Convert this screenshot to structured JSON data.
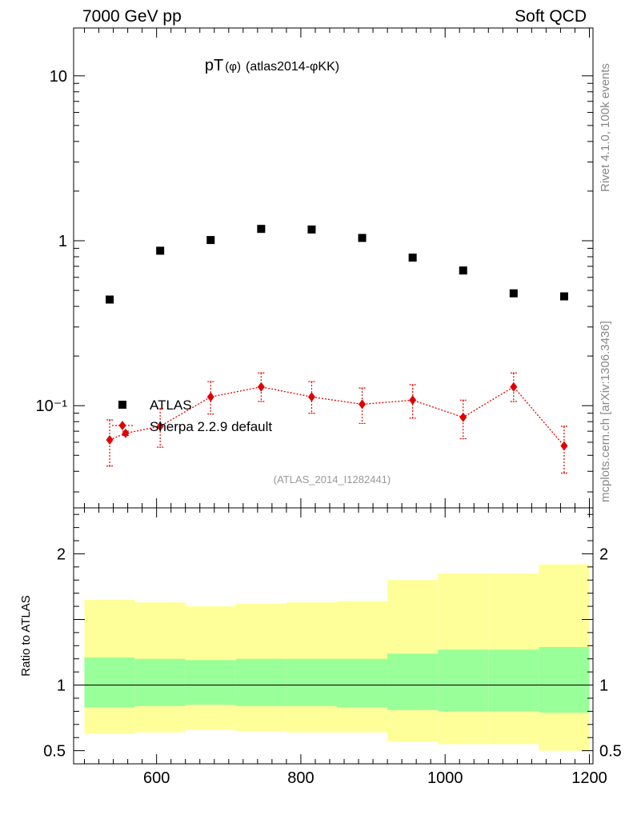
{
  "header": {
    "energy_label": "7000 GeV pp",
    "process_label": "Soft QCD",
    "title_main": "pT",
    "title_sub": "(φ)",
    "title_tail": "(atlas2014-φKK)",
    "side_label_top": "Rivet 4.1.0,  100k events",
    "side_label_bottom": "mcplots.cern.ch [arXiv:1306.3436]",
    "analysis_label": "(ATLAS_2014_I1282441)"
  },
  "colors": {
    "data": "#000000",
    "mc": "#e00000",
    "band_inner": "#99ff99",
    "band_outer": "#ffff99",
    "frame": "#000000",
    "side_text": "#888888"
  },
  "chart_data": {
    "type": "scatter",
    "x_label": "",
    "y_label_ratio": "Ratio to ATLAS",
    "x_range": [
      485,
      1205
    ],
    "y_range": [
      0.024,
      19.5
    ],
    "ratio_range": [
      0.4,
      2.35
    ],
    "x_ticks": [
      600,
      800,
      1000,
      1200
    ],
    "x_tick_labels": [
      "600",
      "800",
      "1000",
      "1200"
    ],
    "y_ticks": [
      {
        "value": 10,
        "label": "10"
      },
      {
        "value": 1,
        "label": "1"
      },
      {
        "value": 0.1,
        "label": "10⁻¹"
      }
    ],
    "ratio_ticks": [
      {
        "value": 2,
        "label": "2"
      },
      {
        "value": 1,
        "label": "1"
      },
      {
        "value": 0.5,
        "label": "0.5"
      }
    ],
    "legend": [
      {
        "name": "ATLAS",
        "marker": "square"
      },
      {
        "name": "Sherpa 2.2.9 default",
        "marker": "diamond"
      }
    ],
    "series": [
      {
        "name": "ATLAS",
        "x": [
          535,
          605,
          675,
          745,
          815,
          885,
          955,
          1025,
          1095,
          1165
        ],
        "y": [
          0.44,
          0.87,
          1.01,
          1.18,
          1.17,
          1.04,
          0.79,
          0.66,
          0.48,
          0.46
        ]
      },
      {
        "name": "Sherpa 2.2.9 default",
        "x": [
          535,
          557,
          605,
          675,
          745,
          815,
          885,
          955,
          1025,
          1095,
          1165
        ],
        "y": [
          0.062,
          0.068,
          0.075,
          0.113,
          0.13,
          0.113,
          0.102,
          0.108,
          0.085,
          0.13,
          0.057
        ],
        "err_lo": [
          0.043,
          0.066,
          0.056,
          0.089,
          0.106,
          0.09,
          0.078,
          0.084,
          0.063,
          0.106,
          0.039
        ],
        "err_hi": [
          0.082,
          0.07,
          0.096,
          0.14,
          0.158,
          0.14,
          0.128,
          0.134,
          0.108,
          0.158,
          0.075
        ]
      }
    ],
    "ratio_bands": {
      "edges": [
        500,
        570,
        640,
        710,
        780,
        850,
        920,
        990,
        1060,
        1130,
        1200
      ],
      "inner_lo": [
        0.83,
        0.84,
        0.85,
        0.84,
        0.84,
        0.83,
        0.81,
        0.8,
        0.8,
        0.79
      ],
      "inner_hi": [
        1.21,
        1.2,
        1.19,
        1.2,
        1.2,
        1.2,
        1.24,
        1.27,
        1.27,
        1.29
      ],
      "outer_lo": [
        0.63,
        0.64,
        0.66,
        0.65,
        0.64,
        0.64,
        0.57,
        0.55,
        0.55,
        0.5
      ],
      "outer_hi": [
        1.65,
        1.63,
        1.6,
        1.62,
        1.63,
        1.64,
        1.8,
        1.85,
        1.85,
        1.92
      ]
    }
  }
}
